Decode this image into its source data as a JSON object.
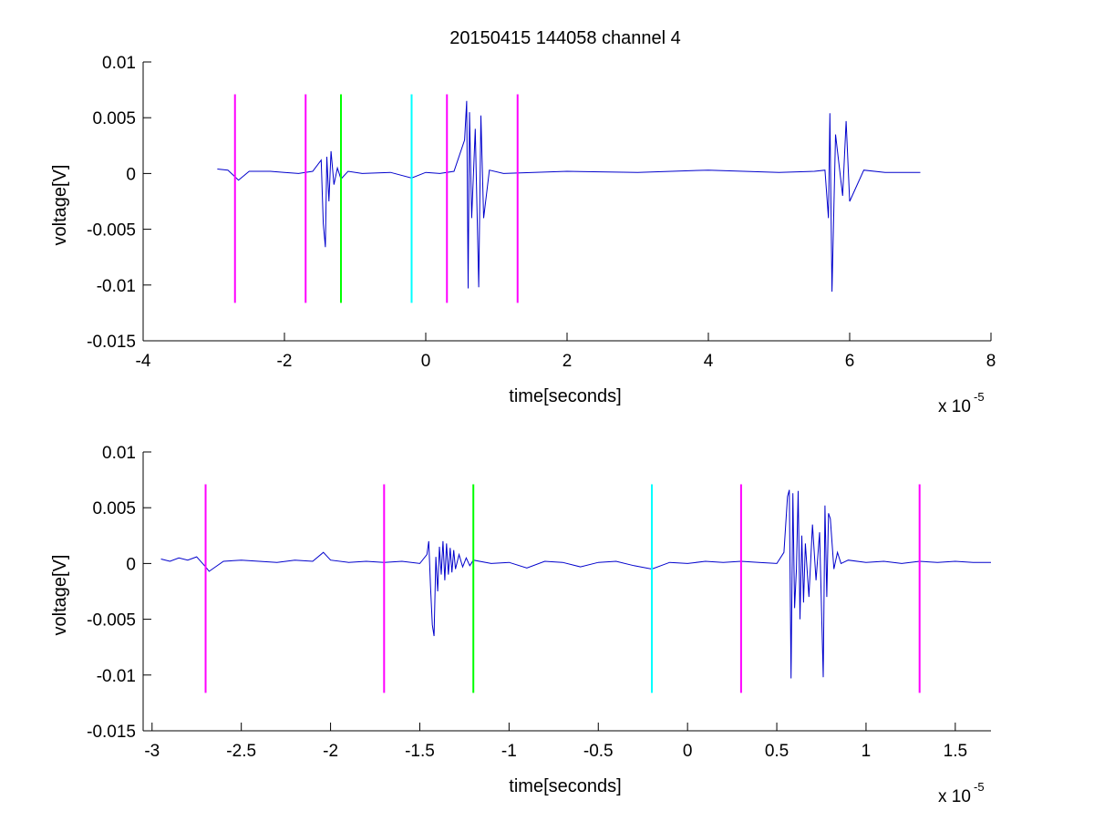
{
  "figure": {
    "title": "20150415 144058 channel 4"
  },
  "chart_data": [
    {
      "type": "line",
      "title": "20150415 144058 channel 4",
      "xlabel": "time[seconds]",
      "ylabel": "voltage[V]",
      "x_multiplier_label": "x 10",
      "x_multiplier_exp": "-5",
      "x_scale": 1e-05,
      "xlim": [
        -4,
        8
      ],
      "ylim": [
        -0.015,
        0.01
      ],
      "xticks": [
        -4,
        -2,
        0,
        2,
        4,
        6,
        8
      ],
      "xtick_labels": [
        "-4",
        "-2",
        "0",
        "2",
        "4",
        "6",
        "8"
      ],
      "yticks": [
        -0.015,
        -0.01,
        -0.005,
        0,
        0.005,
        0.01
      ],
      "ytick_labels": [
        "-0.015",
        "-0.01",
        "-0.005",
        "0",
        "0.005",
        "0.01"
      ],
      "markers": [
        {
          "x": -2.7,
          "color": "#ff00ff",
          "y_range": [
            -0.0116,
            0.0071
          ]
        },
        {
          "x": -1.7,
          "color": "#ff00ff",
          "y_range": [
            -0.0116,
            0.0071
          ]
        },
        {
          "x": -1.2,
          "color": "#00ff00",
          "y_range": [
            -0.0116,
            0.0071
          ]
        },
        {
          "x": -0.2,
          "color": "#00ffff",
          "y_range": [
            -0.0116,
            0.0071
          ]
        },
        {
          "x": 0.3,
          "color": "#ff00ff",
          "y_range": [
            -0.0116,
            0.0071
          ]
        },
        {
          "x": 1.3,
          "color": "#ff00ff",
          "y_range": [
            -0.0116,
            0.0071
          ]
        }
      ],
      "series": [
        {
          "color": "#0000cc",
          "x": [
            -2.95,
            -2.8,
            -2.65,
            -2.5,
            -2.2,
            -2.0,
            -1.8,
            -1.6,
            -1.48,
            -1.45,
            -1.42,
            -1.4,
            -1.37,
            -1.34,
            -1.3,
            -1.25,
            -1.2,
            -1.1,
            -0.9,
            -0.5,
            -0.2,
            0.0,
            0.2,
            0.4,
            0.55,
            0.58,
            0.6,
            0.62,
            0.65,
            0.7,
            0.75,
            0.78,
            0.82,
            0.9,
            1.1,
            2.0,
            3.0,
            4.0,
            5.0,
            5.5,
            5.65,
            5.7,
            5.72,
            5.75,
            5.8,
            5.9,
            5.95,
            6.0,
            6.2,
            6.5,
            7.0
          ],
          "y": [
            0.0004,
            0.0003,
            -0.0006,
            0.0002,
            0.0002,
            0.0001,
            0.0,
            0.0002,
            0.0012,
            -0.0045,
            -0.0066,
            0.0015,
            -0.0025,
            0.002,
            -0.001,
            0.0005,
            -0.0005,
            0.0002,
            0.0,
            0.0001,
            -0.0004,
            0.0001,
            0.0,
            0.0002,
            0.003,
            0.0065,
            -0.0103,
            0.0055,
            -0.004,
            0.004,
            -0.0102,
            0.0052,
            -0.004,
            0.0003,
            0.0,
            0.0002,
            0.0001,
            0.0003,
            0.0001,
            0.0002,
            0.0003,
            -0.004,
            0.0054,
            -0.0106,
            0.0035,
            -0.002,
            0.0047,
            -0.0025,
            0.0003,
            0.0001,
            0.0001
          ]
        }
      ]
    },
    {
      "type": "line",
      "xlabel": "time[seconds]",
      "ylabel": "voltage[V]",
      "x_multiplier_label": "x 10",
      "x_multiplier_exp": "-5",
      "x_scale": 1e-05,
      "xlim": [
        -3.05,
        1.7
      ],
      "ylim": [
        -0.015,
        0.01
      ],
      "xticks": [
        -3,
        -2.5,
        -2,
        -1.5,
        -1,
        -0.5,
        0,
        0.5,
        1,
        1.5
      ],
      "xtick_labels": [
        "-3",
        "-2.5",
        "-2",
        "-1.5",
        "-1",
        "-0.5",
        "0",
        "0.5",
        "1",
        "1.5"
      ],
      "yticks": [
        -0.015,
        -0.01,
        -0.005,
        0,
        0.005,
        0.01
      ],
      "ytick_labels": [
        "-0.015",
        "-0.01",
        "-0.005",
        "0",
        "0.005",
        "0.01"
      ],
      "markers": [
        {
          "x": -2.7,
          "color": "#ff00ff",
          "y_range": [
            -0.0116,
            0.0071
          ]
        },
        {
          "x": -1.7,
          "color": "#ff00ff",
          "y_range": [
            -0.0116,
            0.0071
          ]
        },
        {
          "x": -1.2,
          "color": "#00ff00",
          "y_range": [
            -0.0116,
            0.0071
          ]
        },
        {
          "x": -0.2,
          "color": "#00ffff",
          "y_range": [
            -0.0116,
            0.0071
          ]
        },
        {
          "x": 0.3,
          "color": "#ff00ff",
          "y_range": [
            -0.0116,
            0.0071
          ]
        },
        {
          "x": 1.3,
          "color": "#ff00ff",
          "y_range": [
            -0.0116,
            0.0071
          ]
        }
      ],
      "series": [
        {
          "color": "#0000cc",
          "x": [
            -2.95,
            -2.9,
            -2.85,
            -2.8,
            -2.75,
            -2.7,
            -2.68,
            -2.6,
            -2.5,
            -2.4,
            -2.3,
            -2.2,
            -2.1,
            -2.04,
            -2.0,
            -1.9,
            -1.8,
            -1.7,
            -1.6,
            -1.5,
            -1.46,
            -1.45,
            -1.44,
            -1.43,
            -1.42,
            -1.41,
            -1.4,
            -1.39,
            -1.38,
            -1.37,
            -1.36,
            -1.35,
            -1.34,
            -1.33,
            -1.32,
            -1.31,
            -1.3,
            -1.28,
            -1.26,
            -1.24,
            -1.22,
            -1.2,
            -1.1,
            -1.0,
            -0.9,
            -0.8,
            -0.7,
            -0.6,
            -0.5,
            -0.4,
            -0.3,
            -0.2,
            -0.1,
            0.0,
            0.1,
            0.2,
            0.3,
            0.4,
            0.5,
            0.54,
            0.56,
            0.57,
            0.58,
            0.59,
            0.6,
            0.61,
            0.62,
            0.63,
            0.64,
            0.65,
            0.66,
            0.68,
            0.7,
            0.72,
            0.74,
            0.76,
            0.77,
            0.78,
            0.79,
            0.8,
            0.82,
            0.84,
            0.86,
            0.9,
            1.0,
            1.1,
            1.2,
            1.3,
            1.4,
            1.5,
            1.6,
            1.7
          ],
          "y": [
            0.0004,
            0.0002,
            0.0005,
            0.0003,
            0.0006,
            -0.0003,
            -0.0007,
            0.0002,
            0.0003,
            0.0002,
            0.0001,
            0.0003,
            0.0002,
            0.001,
            0.0003,
            0.0001,
            0.0002,
            0.0001,
            0.0002,
            0.0,
            0.0008,
            0.002,
            -0.002,
            -0.0055,
            -0.0065,
            0.0006,
            -0.0025,
            0.0015,
            -0.001,
            0.002,
            -0.0015,
            0.0018,
            -0.001,
            0.0014,
            -0.0008,
            0.0012,
            -0.0005,
            0.0008,
            -0.0003,
            0.0005,
            -0.0002,
            0.0003,
            0.0,
            0.0001,
            -0.0004,
            0.0002,
            0.0001,
            -0.0003,
            0.0001,
            0.0002,
            -0.0002,
            -0.0005,
            0.0001,
            0.0,
            0.0002,
            0.0001,
            0.0002,
            0.0001,
            0.0,
            0.001,
            0.006,
            0.0066,
            -0.0103,
            0.0063,
            -0.004,
            -0.0005,
            0.0065,
            -0.005,
            0.0025,
            -0.0035,
            0.0018,
            -0.003,
            0.0035,
            -0.0015,
            0.0028,
            -0.0102,
            0.0052,
            -0.003,
            0.0045,
            0.004,
            -0.0005,
            0.001,
            0.0,
            0.0003,
            0.0001,
            0.0002,
            0.0,
            0.0002,
            0.0001,
            0.0002,
            0.0001,
            0.0001
          ]
        }
      ]
    }
  ]
}
